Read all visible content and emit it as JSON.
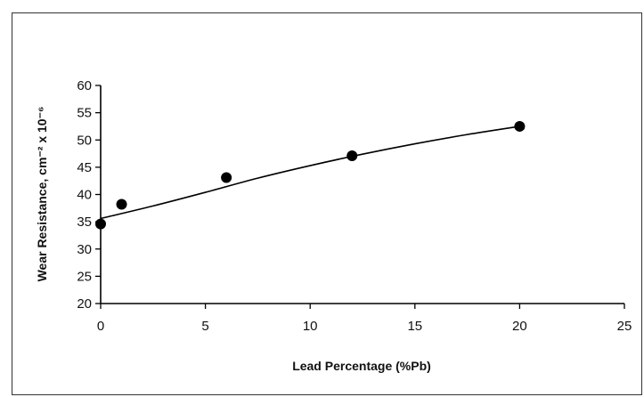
{
  "chart_data": {
    "type": "scatter",
    "title": "",
    "xlabel": "Lead Percentage (%Pb)",
    "ylabel": "Wear Resistance, cm⁻² x 10⁻⁶",
    "xlim": [
      0,
      25
    ],
    "ylim": [
      20,
      60
    ],
    "xticks": [
      0,
      5,
      10,
      15,
      20,
      25
    ],
    "yticks": [
      20,
      25,
      30,
      35,
      40,
      45,
      50,
      55,
      60
    ],
    "grid": false,
    "legend": "none",
    "series": [
      {
        "x": [
          0,
          1,
          6,
          12,
          20
        ],
        "y": [
          34.6,
          38.2,
          43.1,
          47.1,
          52.5
        ]
      }
    ],
    "trendline": {
      "x": [
        0,
        2.5,
        5,
        7.5,
        10,
        12.5,
        15,
        17.5,
        20
      ],
      "y": [
        35.6,
        37.9,
        40.4,
        43.0,
        45.3,
        47.4,
        49.3,
        51.0,
        52.5
      ]
    },
    "colors": {
      "marker": "#000000",
      "line": "#000000",
      "axis": "#000000"
    }
  }
}
